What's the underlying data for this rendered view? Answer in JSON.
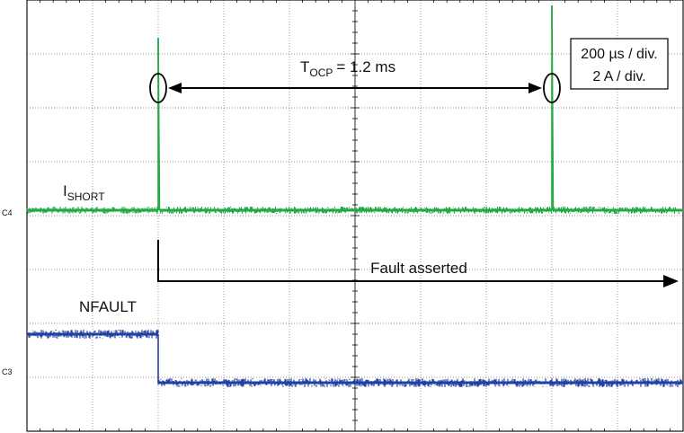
{
  "chart_data": {
    "type": "line",
    "title": "",
    "time_scale": {
      "label": "200 µs / div.",
      "divisions": 10
    },
    "amplitude_scale": {
      "label": "2 A / div.",
      "divisions": 8
    },
    "series": [
      {
        "name": "I_SHORT",
        "channel_marker": "C4",
        "color": "#22a844",
        "points": [
          {
            "x_us": 0,
            "level_div": 4.1
          },
          {
            "x_us": 400,
            "level_div": 4.1
          },
          {
            "x_us": 400,
            "level_div": 7.3
          },
          {
            "x_us": 404,
            "level_div": 4.1
          },
          {
            "x_us": 1600,
            "level_div": 4.1
          },
          {
            "x_us": 1600,
            "level_div": 7.9
          },
          {
            "x_us": 1604,
            "level_div": 4.1
          },
          {
            "x_us": 2000,
            "level_div": 4.1
          }
        ]
      },
      {
        "name": "NFAULT",
        "channel_marker": "C3",
        "color": "#2240a0",
        "points": [
          {
            "x_us": 0,
            "level_div": 1.8
          },
          {
            "x_us": 400,
            "level_div": 1.8
          },
          {
            "x_us": 400,
            "level_div": 0.9
          },
          {
            "x_us": 2000,
            "level_div": 0.9
          }
        ]
      }
    ],
    "annotations": {
      "tocp_main": "T",
      "tocp_sub": "OCP",
      "tocp_value": "= 1.2 ms",
      "ishort_main": "I",
      "ishort_sub": "SHORT",
      "nfault": "NFAULT",
      "fault_asserted": "Fault asserted",
      "tocp_start_us": 400,
      "tocp_end_us": 1600,
      "fault_start_us": 400
    },
    "colors": {
      "ishort": "#22a844",
      "nfault": "#2240a0",
      "grid": "#777777",
      "frame": "#000000"
    },
    "grid": true
  }
}
